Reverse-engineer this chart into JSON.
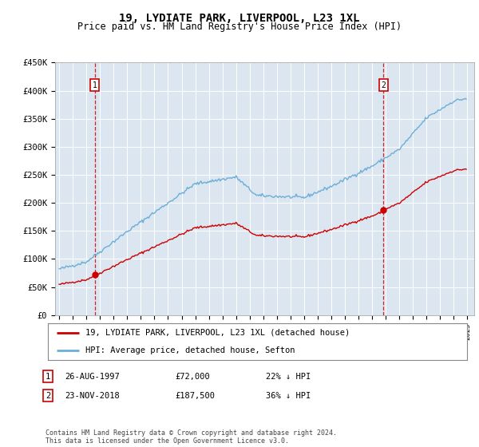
{
  "title": "19, LYDIATE PARK, LIVERPOOL, L23 1XL",
  "subtitle": "Price paid vs. HM Land Registry's House Price Index (HPI)",
  "ylim": [
    0,
    450000
  ],
  "yticks": [
    0,
    50000,
    100000,
    150000,
    200000,
    250000,
    300000,
    350000,
    400000,
    450000
  ],
  "ytick_labels": [
    "£0",
    "£50K",
    "£100K",
    "£150K",
    "£200K",
    "£250K",
    "£300K",
    "£350K",
    "£400K",
    "£450K"
  ],
  "bg_color": "#dce6f1",
  "hpi_color": "#6baed6",
  "price_color": "#cc0000",
  "sale_dates": [
    1997.625,
    2018.833
  ],
  "sale_prices": [
    72000,
    187500
  ],
  "legend_line1": "19, LYDIATE PARK, LIVERPOOL, L23 1XL (detached house)",
  "legend_line2": "HPI: Average price, detached house, Sefton",
  "footer": "Contains HM Land Registry data © Crown copyright and database right 2024.\nThis data is licensed under the Open Government Licence v3.0.",
  "xlim_left": 1994.7,
  "xlim_right": 2025.5
}
